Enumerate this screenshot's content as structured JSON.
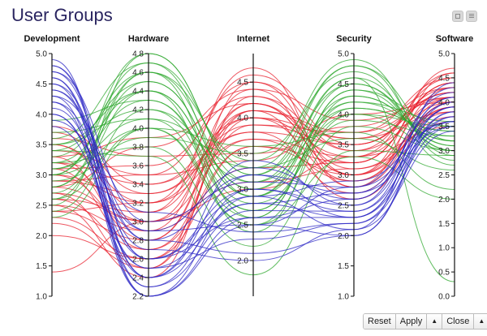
{
  "page": {
    "title": "User Groups"
  },
  "window_controls": {
    "minimize_icon": "square-icon",
    "menu_icon": "hamburger-icon"
  },
  "toolbar": {
    "reset_label": "Reset",
    "apply_label": "Apply",
    "apply_caret": "▲",
    "close_label": "Close",
    "close_caret": "▲"
  },
  "colors": {
    "red_group": "#e8202e",
    "green_group": "#2fa82f",
    "blue_group": "#2b26c4",
    "title": "#2a2560"
  },
  "chart_data": {
    "type": "parallel-coordinates",
    "title": "User Groups",
    "dimensions": [
      {
        "name": "Development",
        "range": [
          1.0,
          5.0
        ],
        "ticks": [
          "1.0",
          "1.5",
          "2.0",
          "2.5",
          "3.0",
          "3.5",
          "4.0",
          "4.5",
          "5.0"
        ]
      },
      {
        "name": "Hardware",
        "range": [
          2.2,
          4.8
        ],
        "ticks": [
          "2.2",
          "2.4",
          "2.6",
          "2.8",
          "3.0",
          "3.2",
          "3.4",
          "3.6",
          "3.8",
          "4.0",
          "4.2",
          "4.4",
          "4.6",
          "4.8"
        ]
      },
      {
        "name": "Internet",
        "range": [
          1.5,
          4.9
        ],
        "ticks": [
          "2.0",
          "2.5",
          "3.0",
          "3.5",
          "4.0",
          "4.5"
        ]
      },
      {
        "name": "Security",
        "range": [
          1.0,
          5.0
        ],
        "ticks": [
          "1.0",
          "1.5",
          "2.0",
          "2.5",
          "3.0",
          "3.5",
          "4.0",
          "4.5",
          "5.0"
        ]
      },
      {
        "name": "Software",
        "range": [
          0.0,
          5.0
        ],
        "ticks": [
          "0.0",
          "0.5",
          "1.0",
          "1.5",
          "2.0",
          "2.5",
          "3.0",
          "3.5",
          "4.0",
          "4.5",
          "5.0"
        ]
      }
    ],
    "groups": [
      {
        "name": "red",
        "color": "#e8202e",
        "records": [
          [
            3.0,
            3.2,
            4.0,
            3.3,
            4.1
          ],
          [
            2.8,
            3.0,
            4.2,
            3.0,
            3.9
          ],
          [
            3.2,
            3.4,
            3.8,
            3.5,
            4.3
          ],
          [
            2.5,
            2.9,
            4.4,
            2.8,
            4.0
          ],
          [
            3.5,
            3.1,
            4.1,
            3.6,
            4.2
          ],
          [
            2.6,
            2.7,
            3.6,
            3.2,
            4.4
          ],
          [
            3.1,
            3.6,
            4.3,
            3.1,
            3.8
          ],
          [
            2.9,
            3.3,
            3.9,
            3.7,
            4.5
          ],
          [
            2.3,
            2.6,
            4.0,
            2.9,
            4.1
          ],
          [
            3.4,
            3.5,
            4.5,
            3.4,
            4.0
          ],
          [
            2.7,
            3.0,
            3.7,
            3.3,
            4.6
          ],
          [
            3.3,
            2.8,
            4.2,
            3.0,
            3.7
          ],
          [
            2.4,
            3.2,
            4.6,
            3.5,
            4.2
          ],
          [
            3.6,
            3.7,
            3.5,
            3.8,
            4.3
          ],
          [
            2.2,
            2.5,
            4.1,
            2.6,
            3.9
          ],
          [
            3.0,
            2.9,
            3.3,
            3.2,
            4.4
          ],
          [
            2.8,
            3.8,
            4.4,
            3.9,
            4.1
          ],
          [
            3.7,
            3.3,
            3.8,
            2.7,
            4.0
          ],
          [
            2.5,
            2.4,
            4.3,
            3.4,
            4.5
          ],
          [
            3.2,
            3.0,
            3.1,
            3.1,
            3.6
          ],
          [
            2.0,
            2.6,
            3.6,
            3.0,
            4.3
          ],
          [
            3.8,
            3.4,
            4.0,
            3.6,
            3.8
          ],
          [
            2.6,
            3.1,
            4.7,
            2.8,
            4.6
          ],
          [
            3.1,
            2.7,
            3.9,
            3.5,
            4.2
          ],
          [
            2.9,
            3.5,
            3.4,
            4.0,
            4.0
          ],
          [
            1.4,
            3.0,
            3.0,
            3.3,
            3.5
          ],
          [
            3.3,
            3.9,
            4.2,
            3.2,
            4.4
          ],
          [
            2.4,
            2.8,
            4.1,
            3.7,
            4.1
          ],
          [
            3.5,
            3.2,
            3.7,
            2.9,
            3.9
          ],
          [
            2.7,
            2.5,
            4.5,
            3.0,
            4.7
          ]
        ]
      },
      {
        "name": "green",
        "color": "#2fa82f",
        "records": [
          [
            3.2,
            4.4,
            2.9,
            4.3,
            3.2
          ],
          [
            2.8,
            4.6,
            3.1,
            4.6,
            3.0
          ],
          [
            3.5,
            4.2,
            2.7,
            4.1,
            3.4
          ],
          [
            3.0,
            4.7,
            3.3,
            4.8,
            2.9
          ],
          [
            2.6,
            4.0,
            2.6,
            4.4,
            3.1
          ],
          [
            3.4,
            4.5,
            3.0,
            4.2,
            3.6
          ],
          [
            2.9,
            3.9,
            3.5,
            4.7,
            2.7
          ],
          [
            3.1,
            4.3,
            2.8,
            3.9,
            3.3
          ],
          [
            2.5,
            4.8,
            3.2,
            4.5,
            3.0
          ],
          [
            3.7,
            4.1,
            2.5,
            4.0,
            3.5
          ],
          [
            3.3,
            4.6,
            3.4,
            4.9,
            2.8
          ],
          [
            2.7,
            4.4,
            2.4,
            4.3,
            3.2
          ],
          [
            3.0,
            4.0,
            3.6,
            3.7,
            2.2
          ],
          [
            3.6,
            4.7,
            2.9,
            4.5,
            3.1
          ],
          [
            2.4,
            4.2,
            3.1,
            4.1,
            3.4
          ],
          [
            3.2,
            3.8,
            2.2,
            3.8,
            3.0
          ],
          [
            2.8,
            4.5,
            3.0,
            4.6,
            0.3
          ],
          [
            3.9,
            4.3,
            2.7,
            4.2,
            3.3
          ],
          [
            3.1,
            4.1,
            3.3,
            3.6,
            2.6
          ],
          [
            2.6,
            4.6,
            2.6,
            4.4,
            3.5
          ],
          [
            3.4,
            3.7,
            1.8,
            3.4,
            2.9
          ],
          [
            3.0,
            4.8,
            3.2,
            4.8,
            3.2
          ],
          [
            2.3,
            4.0,
            2.5,
            3.3,
            2.0
          ],
          [
            3.5,
            4.4,
            2.9,
            4.0,
            3.0
          ]
        ]
      },
      {
        "name": "blue",
        "color": "#2b26c4",
        "records": [
          [
            4.6,
            2.4,
            2.8,
            2.3,
            3.6
          ],
          [
            4.8,
            2.6,
            3.0,
            2.5,
            3.9
          ],
          [
            4.3,
            2.2,
            2.5,
            2.0,
            3.8
          ],
          [
            4.5,
            2.8,
            3.2,
            2.7,
            4.0
          ],
          [
            4.0,
            2.5,
            2.3,
            2.2,
            3.5
          ],
          [
            4.7,
            3.0,
            3.1,
            2.8,
            4.2
          ],
          [
            4.2,
            2.3,
            2.7,
            2.4,
            3.7
          ],
          [
            4.4,
            2.7,
            2.0,
            2.1,
            3.4
          ],
          [
            3.9,
            2.9,
            3.3,
            2.6,
            4.1
          ],
          [
            4.6,
            2.2,
            2.6,
            2.3,
            3.9
          ],
          [
            4.1,
            2.6,
            2.9,
            2.9,
            3.6
          ],
          [
            4.8,
            2.4,
            3.4,
            2.5,
            4.3
          ],
          [
            4.3,
            3.1,
            2.4,
            2.2,
            3.8
          ],
          [
            3.8,
            2.5,
            2.8,
            2.7,
            3.5
          ],
          [
            4.5,
            2.3,
            3.0,
            2.4,
            4.0
          ],
          [
            4.2,
            2.8,
            2.1,
            2.0,
            3.7
          ],
          [
            4.7,
            2.6,
            2.6,
            2.6,
            4.1
          ],
          [
            4.0,
            2.4,
            3.2,
            2.3,
            3.9
          ],
          [
            4.4,
            2.9,
            2.5,
            2.8,
            3.6
          ],
          [
            4.9,
            2.2,
            2.9,
            2.1,
            4.4
          ]
        ]
      }
    ]
  }
}
